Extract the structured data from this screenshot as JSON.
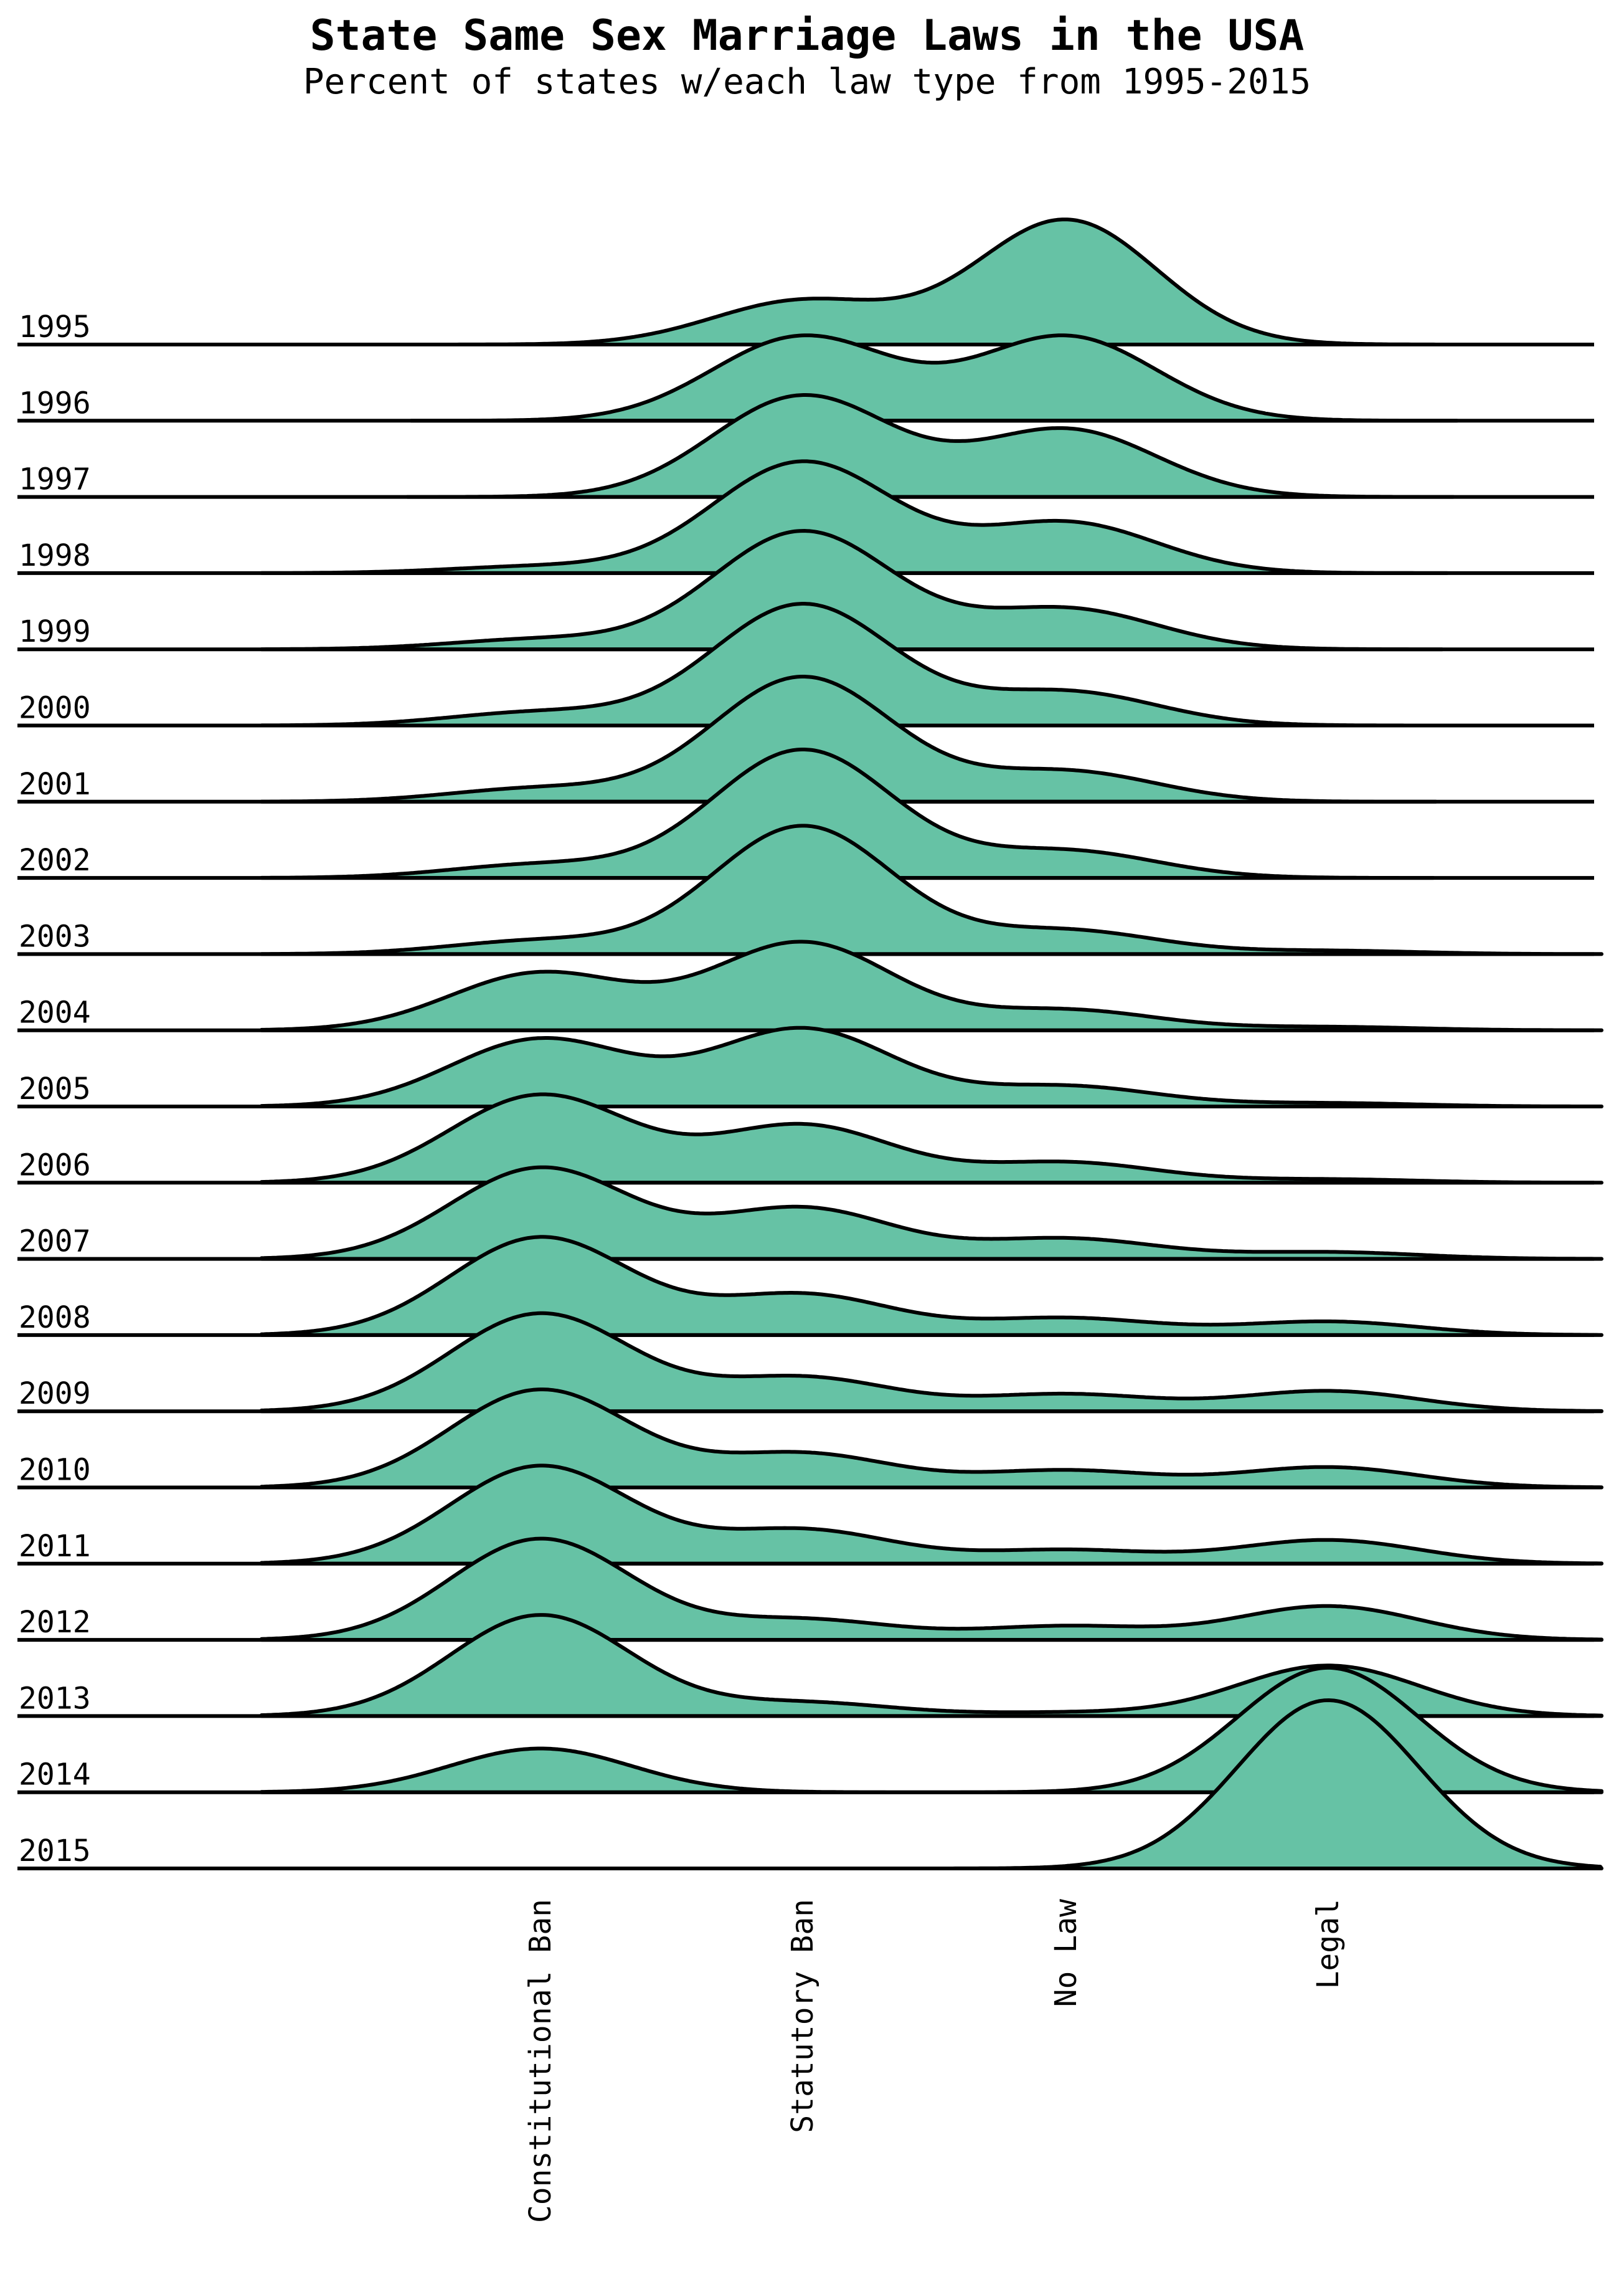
{
  "chart_data": {
    "type": "ridgeline",
    "title": "State Same Sex Marriage Laws in the USA",
    "subtitle": "Percent of states w/each law type from 1995-2015",
    "categories": [
      "Constitutional Ban",
      "Statutory Ban",
      "No Law",
      "Legal"
    ],
    "fill_color": "#66c2a5",
    "line_color": "#000000",
    "background": "#ffffff",
    "grid": false,
    "series": [
      {
        "name": "1995",
        "values": [
          0,
          26,
          74,
          0
        ]
      },
      {
        "name": "1996",
        "values": [
          0,
          50,
          50,
          0
        ]
      },
      {
        "name": "1997",
        "values": [
          0,
          60,
          40,
          0
        ]
      },
      {
        "name": "1998",
        "values": [
          4,
          66,
          30,
          0
        ]
      },
      {
        "name": "1999",
        "values": [
          6,
          70,
          24,
          0
        ]
      },
      {
        "name": "2000",
        "values": [
          8,
          72,
          20,
          0
        ]
      },
      {
        "name": "2001",
        "values": [
          8,
          74,
          18,
          0
        ]
      },
      {
        "name": "2002",
        "values": [
          8,
          76,
          16,
          0
        ]
      },
      {
        "name": "2003",
        "values": [
          8,
          76,
          14,
          2
        ]
      },
      {
        "name": "2004",
        "values": [
          34,
          52,
          12,
          2
        ]
      },
      {
        "name": "2005",
        "values": [
          40,
          46,
          12,
          2
        ]
      },
      {
        "name": "2006",
        "values": [
          52,
          34,
          12,
          2
        ]
      },
      {
        "name": "2007",
        "values": [
          54,
          30,
          12,
          4
        ]
      },
      {
        "name": "2008",
        "values": [
          58,
          24,
          10,
          8
        ]
      },
      {
        "name": "2009",
        "values": [
          58,
          20,
          10,
          12
        ]
      },
      {
        "name": "2010",
        "values": [
          58,
          20,
          10,
          12
        ]
      },
      {
        "name": "2011",
        "values": [
          58,
          20,
          8,
          14
        ]
      },
      {
        "name": "2012",
        "values": [
          60,
          12,
          8,
          20
        ]
      },
      {
        "name": "2013",
        "values": [
          60,
          8,
          2,
          30
        ]
      },
      {
        "name": "2014",
        "values": [
          26,
          0,
          0,
          74
        ]
      },
      {
        "name": "2015",
        "values": [
          0,
          0,
          0,
          100
        ]
      }
    ]
  }
}
